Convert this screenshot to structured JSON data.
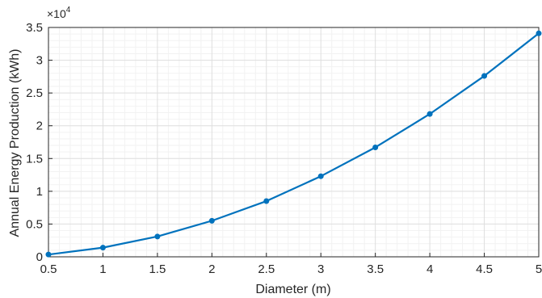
{
  "chart_data": {
    "type": "line",
    "title": "",
    "xlabel": "Diameter (m)",
    "ylabel": "Annual Energy Production (kWh)",
    "y_exponent_label": "×10",
    "y_exponent_power": "4",
    "xlim": [
      0.5,
      5
    ],
    "ylim": [
      0,
      35000
    ],
    "x_ticks": [
      "0.5",
      "1",
      "1.5",
      "2",
      "2.5",
      "3",
      "3.5",
      "4",
      "4.5",
      "5"
    ],
    "y_ticks": [
      "0",
      "0.5",
      "1",
      "1.5",
      "2",
      "2.5",
      "3",
      "3.5"
    ],
    "grid": true,
    "minor_grid": true,
    "series": [
      {
        "color": "#0072BD",
        "x": [
          0.5,
          1,
          1.5,
          2,
          2.5,
          3,
          3.5,
          4,
          4.5,
          5
        ],
        "y": [
          350,
          1400,
          3100,
          5500,
          8500,
          12300,
          16700,
          21800,
          27600,
          34100
        ]
      }
    ]
  }
}
